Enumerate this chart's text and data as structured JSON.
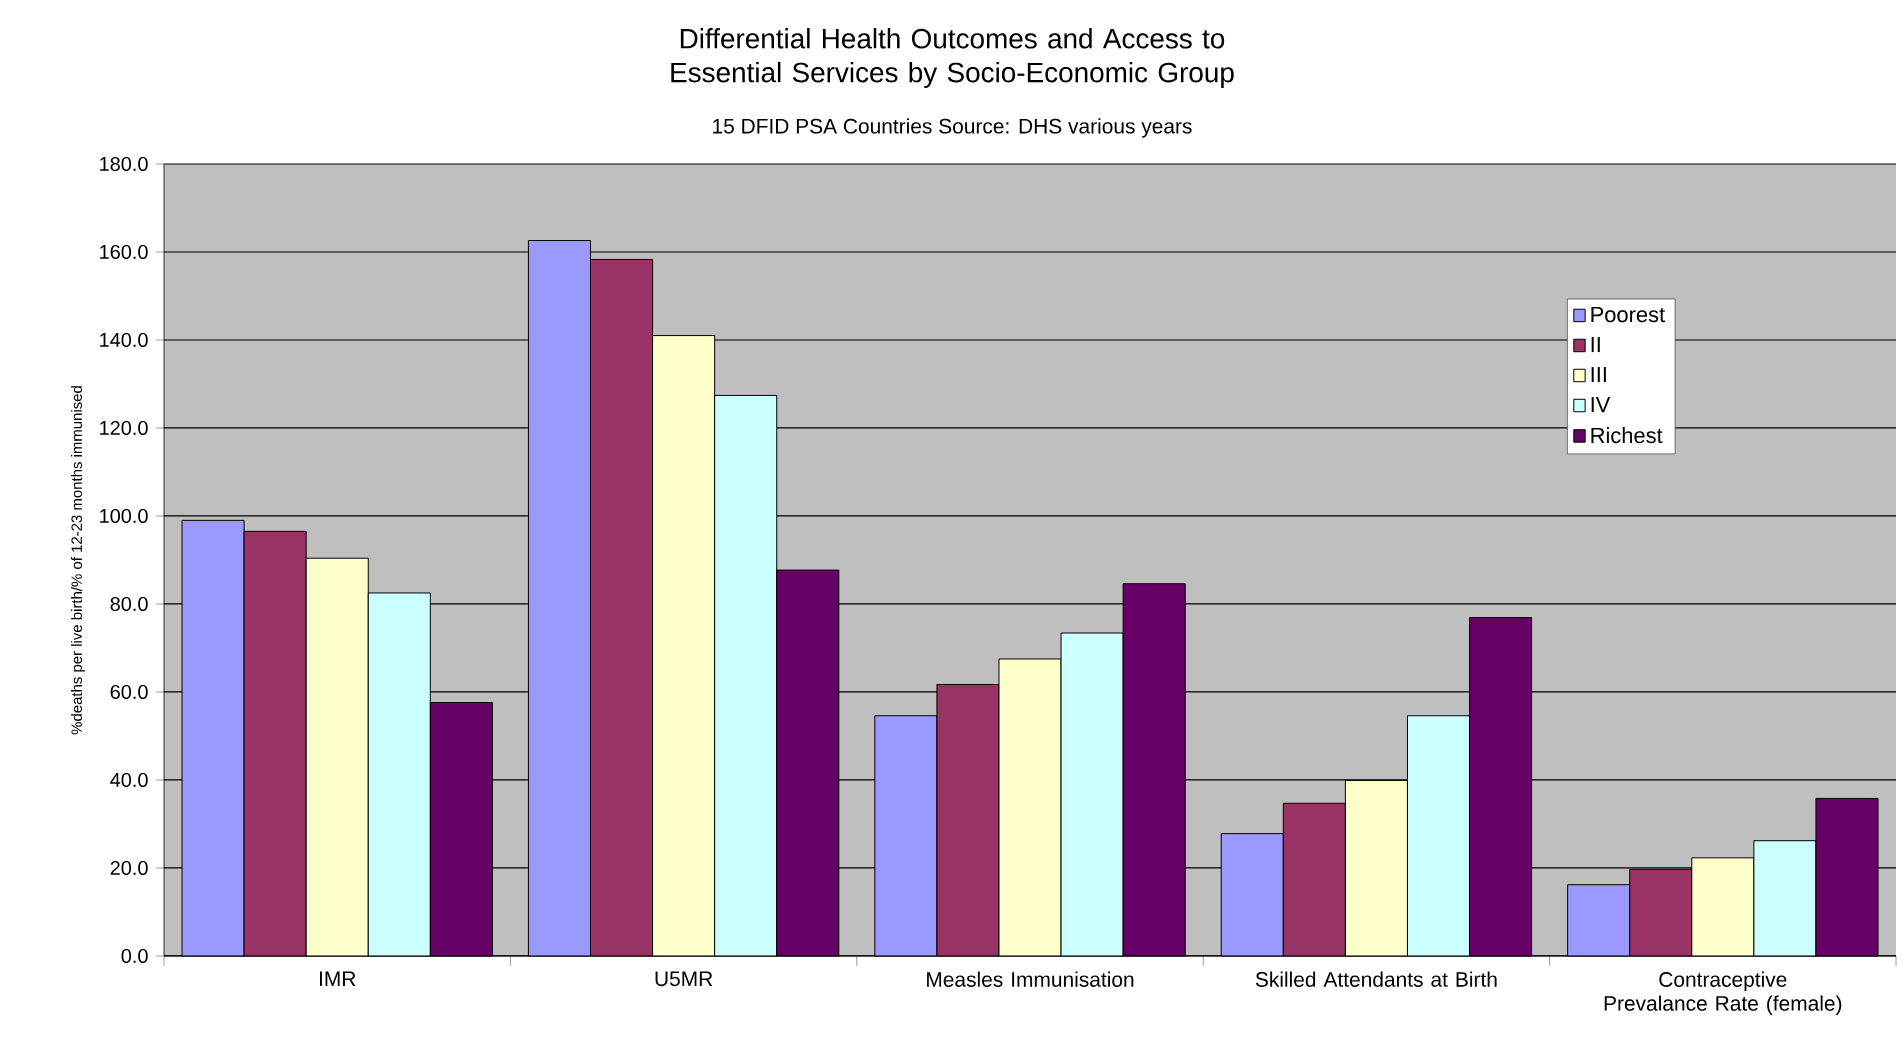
{
  "chart_data": {
    "type": "bar",
    "title": "Differential Health Outcomes and Access to Essential Services by Socio-Economic Group",
    "subtitle": "15 DFID PSA Countries Source: DHS various years",
    "ylabel": "%deaths per live birth/% of 12-23 months immunised",
    "categories": [
      "IMR",
      "U5MR",
      "Measles Immunisation",
      "Skilled Attendants at Birth",
      "Contraceptive Prevalance Rate (female)"
    ],
    "series": [
      {
        "name": "Poorest",
        "color": "#9999ff",
        "values": [
          99.0,
          162.6,
          54.6,
          27.8,
          16.2
        ]
      },
      {
        "name": "II",
        "color": "#993366",
        "values": [
          96.5,
          158.3,
          61.7,
          34.7,
          19.7
        ]
      },
      {
        "name": "III",
        "color": "#ffffcc",
        "values": [
          90.4,
          141.0,
          67.5,
          39.9,
          22.3
        ]
      },
      {
        "name": "IV",
        "color": "#ccffff",
        "values": [
          82.5,
          127.4,
          73.4,
          54.6,
          26.2
        ]
      },
      {
        "name": "Richest",
        "color": "#660066",
        "values": [
          57.6,
          87.7,
          84.6,
          76.9,
          35.8
        ]
      }
    ],
    "ylim": [
      0,
      180
    ],
    "yticks": [
      {
        "value": 0,
        "label": "0.0"
      },
      {
        "value": 20,
        "label": "20.0"
      },
      {
        "value": 40,
        "label": "40.0"
      },
      {
        "value": 60,
        "label": "60.0"
      },
      {
        "value": 80,
        "label": "80.0"
      },
      {
        "value": 100,
        "label": "100.0"
      },
      {
        "value": 120,
        "label": "120.0"
      },
      {
        "value": 140,
        "label": "140.0"
      },
      {
        "value": 160,
        "label": "160.0"
      },
      {
        "value": 180,
        "label": "180.0"
      }
    ],
    "grid": "y",
    "legend": "right"
  }
}
